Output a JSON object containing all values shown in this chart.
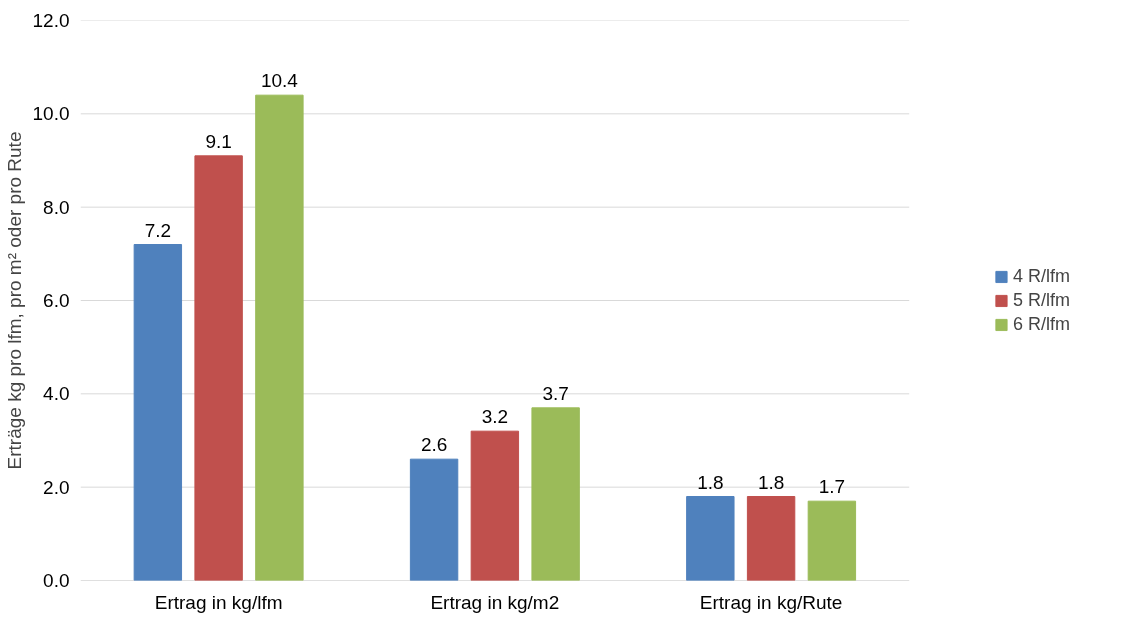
{
  "chart_data": {
    "type": "bar",
    "ylabel": "Erträge kg pro lfm, pro m² oder pro Rute",
    "categories": [
      "Ertrag in kg/lfm",
      "Ertrag in kg/m2",
      "Ertrag in kg/Rute"
    ],
    "series": [
      {
        "name": "4 R/lfm",
        "color": "#4f81bd",
        "values": [
          7.2,
          2.6,
          1.8
        ]
      },
      {
        "name": "5 R/lfm",
        "color": "#c0504d",
        "values": [
          9.1,
          3.2,
          1.8
        ]
      },
      {
        "name": "6 R/lfm",
        "color": "#9bbb59",
        "values": [
          10.4,
          3.7,
          1.7
        ]
      }
    ],
    "ylim": [
      0,
      12
    ],
    "yticks": [
      {
        "value": 0,
        "label": "0.0"
      },
      {
        "value": 2,
        "label": "2.0"
      },
      {
        "value": 4,
        "label": "4.0"
      },
      {
        "value": 6,
        "label": "6.0"
      },
      {
        "value": 8,
        "label": "8.0"
      },
      {
        "value": 10,
        "label": "10.0"
      },
      {
        "value": 12,
        "label": "12.0"
      }
    ],
    "grid": "y",
    "legend": "right",
    "data_labels": true
  }
}
